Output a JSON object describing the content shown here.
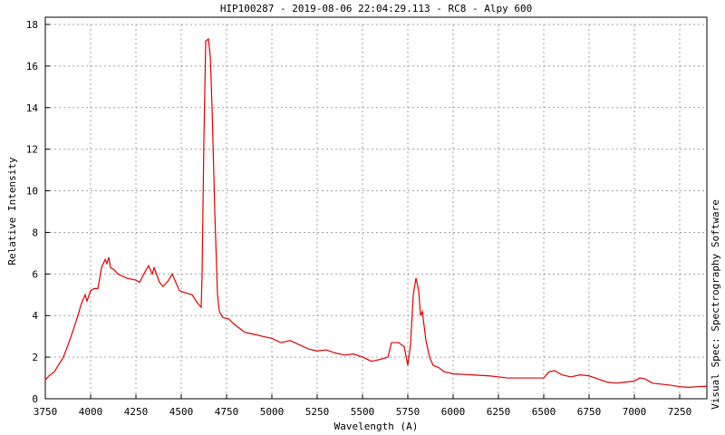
{
  "chart_data": {
    "type": "line",
    "title": "HIP100287 - 2019-08-06 22:04:29.113 - RC8 - Alpy 600",
    "x_label": "Wavelength (A)",
    "y_label": "Relative Intensity",
    "annotation": "Visual Spec: Spectrography Software",
    "color": "#e00000",
    "grid": true,
    "xlim": [
      3750,
      7400
    ],
    "ylim": [
      0,
      18
    ],
    "xticks": [
      3750,
      4000,
      4250,
      4500,
      4750,
      5000,
      5250,
      5500,
      5750,
      6000,
      6250,
      6500,
      6750,
      7000,
      7250
    ],
    "yticks": [
      0,
      2,
      4,
      6,
      8,
      10,
      12,
      14,
      16,
      18
    ],
    "x": [
      3750,
      3770,
      3800,
      3850,
      3880,
      3900,
      3930,
      3950,
      3970,
      3980,
      4000,
      4020,
      4040,
      4060,
      4080,
      4090,
      4100,
      4110,
      4130,
      4150,
      4200,
      4250,
      4270,
      4300,
      4320,
      4340,
      4350,
      4380,
      4400,
      4430,
      4450,
      4470,
      4490,
      4520,
      4560,
      4590,
      4610,
      4615,
      4625,
      4635,
      4650,
      4660,
      4670,
      4685,
      4700,
      4710,
      4730,
      4760,
      4790,
      4820,
      4850,
      4900,
      4950,
      5000,
      5050,
      5100,
      5150,
      5200,
      5250,
      5300,
      5350,
      5400,
      5450,
      5500,
      5550,
      5600,
      5640,
      5660,
      5700,
      5730,
      5750,
      5765,
      5780,
      5795,
      5810,
      5820,
      5830,
      5850,
      5870,
      5890,
      5920,
      5950,
      6000,
      6100,
      6200,
      6300,
      6400,
      6500,
      6530,
      6560,
      6600,
      6650,
      6700,
      6750,
      6800,
      6850,
      6900,
      6950,
      7000,
      7030,
      7060,
      7100,
      7150,
      7200,
      7250,
      7300,
      7350,
      7400
    ],
    "values": [
      0.9,
      1.1,
      1.3,
      2.0,
      2.7,
      3.2,
      4.0,
      4.6,
      5.0,
      4.7,
      5.2,
      5.3,
      5.3,
      6.3,
      6.7,
      6.5,
      6.8,
      6.3,
      6.2,
      6.0,
      5.8,
      5.7,
      5.6,
      6.1,
      6.4,
      6.0,
      6.3,
      5.6,
      5.4,
      5.7,
      6.0,
      5.6,
      5.2,
      5.1,
      5.0,
      4.6,
      4.4,
      6.0,
      12.5,
      17.2,
      17.3,
      16.5,
      14,
      9,
      5,
      4.2,
      3.9,
      3.85,
      3.6,
      3.4,
      3.2,
      3.1,
      3.0,
      2.9,
      2.7,
      2.8,
      2.6,
      2.4,
      2.3,
      2.35,
      2.2,
      2.1,
      2.15,
      2.0,
      1.8,
      1.9,
      2.0,
      2.7,
      2.7,
      2.5,
      1.6,
      2.6,
      5.0,
      5.8,
      5.2,
      4.0,
      4.2,
      2.8,
      2.0,
      1.6,
      1.5,
      1.3,
      1.2,
      1.15,
      1.1,
      1.0,
      1.0,
      1.0,
      1.3,
      1.35,
      1.15,
      1.05,
      1.15,
      1.1,
      0.95,
      0.8,
      0.75,
      0.8,
      0.85,
      1.0,
      0.95,
      0.75,
      0.7,
      0.65,
      0.58,
      0.55,
      0.58,
      0.6
    ]
  }
}
